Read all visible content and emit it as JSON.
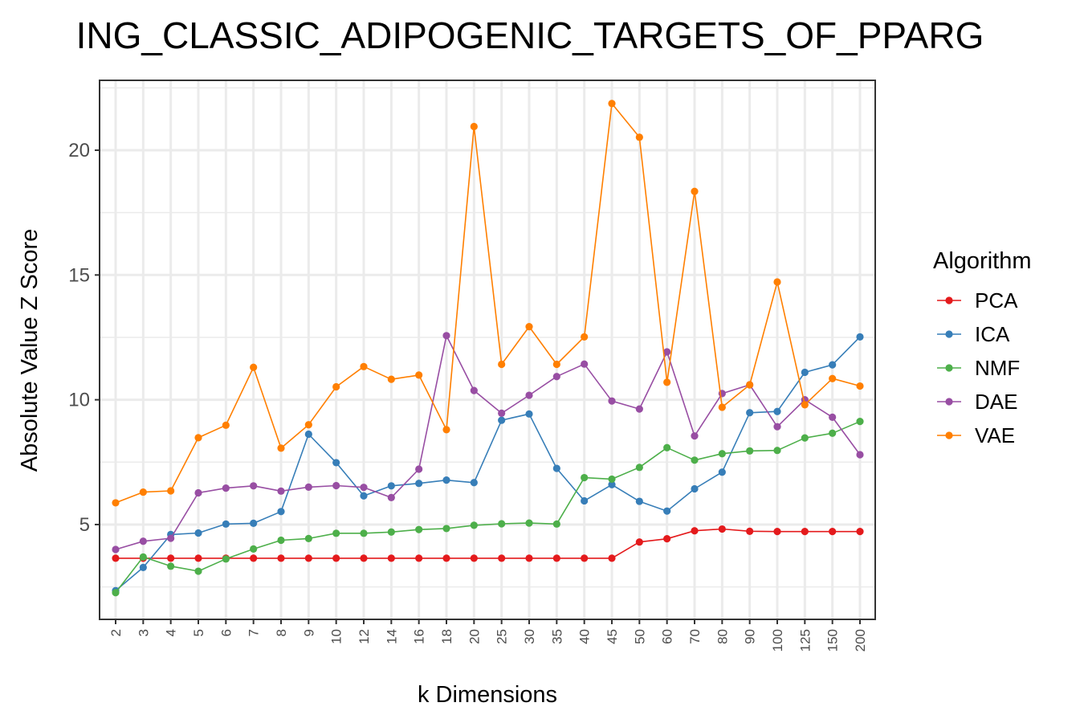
{
  "chart_data": {
    "type": "line",
    "title": "ING_CLASSIC_ADIPOGENIC_TARGETS_OF_PPARG",
    "xlabel": "k Dimensions",
    "ylabel": "Absolute Value Z Score",
    "categories": [
      "2",
      "3",
      "4",
      "5",
      "6",
      "7",
      "8",
      "9",
      "10",
      "12",
      "14",
      "16",
      "18",
      "20",
      "25",
      "30",
      "35",
      "40",
      "45",
      "50",
      "60",
      "70",
      "80",
      "90",
      "100",
      "125",
      "150",
      "200"
    ],
    "yticks": [
      5,
      10,
      15,
      20
    ],
    "ylim": [
      1.2,
      22.8
    ],
    "grid": true,
    "legend": {
      "title": "Algorithm",
      "placement": "right"
    },
    "series": [
      {
        "name": "PCA",
        "color": "#e41a1c",
        "values": [
          3.65,
          3.65,
          3.65,
          3.65,
          3.65,
          3.65,
          3.65,
          3.65,
          3.65,
          3.65,
          3.65,
          3.65,
          3.65,
          3.65,
          3.65,
          3.65,
          3.65,
          3.65,
          3.65,
          4.3,
          4.43,
          4.75,
          4.82,
          4.73,
          4.72,
          4.72,
          4.72,
          4.72
        ]
      },
      {
        "name": "ICA",
        "color": "#377eb8",
        "values": [
          2.35,
          3.28,
          4.6,
          4.66,
          5.02,
          5.05,
          5.52,
          8.62,
          7.48,
          6.15,
          6.55,
          6.65,
          6.78,
          6.68,
          9.18,
          9.43,
          7.25,
          5.95,
          6.6,
          5.93,
          5.54,
          6.43,
          7.1,
          9.48,
          9.53,
          11.1,
          11.4,
          12.52
        ]
      },
      {
        "name": "NMF",
        "color": "#4daf4a",
        "values": [
          2.27,
          3.7,
          3.33,
          3.13,
          3.62,
          4.02,
          4.37,
          4.44,
          4.65,
          4.65,
          4.7,
          4.8,
          4.84,
          4.97,
          5.03,
          5.06,
          5.02,
          6.88,
          6.82,
          7.29,
          8.08,
          7.58,
          7.84,
          7.95,
          7.97,
          8.47,
          8.66,
          9.13
        ]
      },
      {
        "name": "DAE",
        "color": "#984ea3",
        "values": [
          4.0,
          4.33,
          4.45,
          6.27,
          6.46,
          6.55,
          6.34,
          6.5,
          6.56,
          6.49,
          6.08,
          7.22,
          12.57,
          10.37,
          9.46,
          10.18,
          10.93,
          11.43,
          9.95,
          9.63,
          11.92,
          8.55,
          10.25,
          10.6,
          8.92,
          10.0,
          9.3,
          7.8
        ]
      },
      {
        "name": "VAE",
        "color": "#ff7f00",
        "values": [
          5.87,
          6.3,
          6.35,
          8.48,
          8.98,
          11.3,
          8.06,
          9.0,
          10.52,
          11.33,
          10.82,
          10.99,
          8.8,
          20.95,
          11.42,
          12.93,
          11.42,
          12.52,
          21.87,
          20.52,
          10.7,
          18.35,
          9.7,
          10.6,
          14.72,
          9.8,
          10.85,
          10.55
        ]
      }
    ]
  }
}
